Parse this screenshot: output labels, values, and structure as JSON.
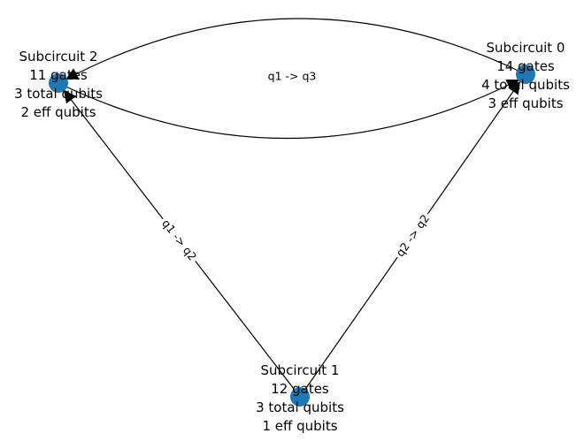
{
  "colors": {
    "node": "#1f77b4",
    "edge": "#000000"
  },
  "nodes": [
    {
      "id": "0",
      "lines": [
        "Subcircuit 0",
        "14 gates",
        "4 total qubits",
        "3 eff qubits"
      ]
    },
    {
      "id": "1",
      "lines": [
        "Subcircuit 1",
        "12 gates",
        "3 total qubits",
        "1 eff qubits"
      ]
    },
    {
      "id": "2",
      "lines": [
        "Subcircuit 2",
        "11 gates",
        "3 total qubits",
        "2 eff qubits"
      ]
    }
  ],
  "edges": [
    {
      "from": "0",
      "to": "2",
      "label": "q1 -> q3"
    },
    {
      "from": "2",
      "to": "0",
      "label": ""
    },
    {
      "from": "1",
      "to": "2",
      "label": "q1 -> q2"
    },
    {
      "from": "1",
      "to": "0",
      "label": "q2 -> q2"
    }
  ]
}
